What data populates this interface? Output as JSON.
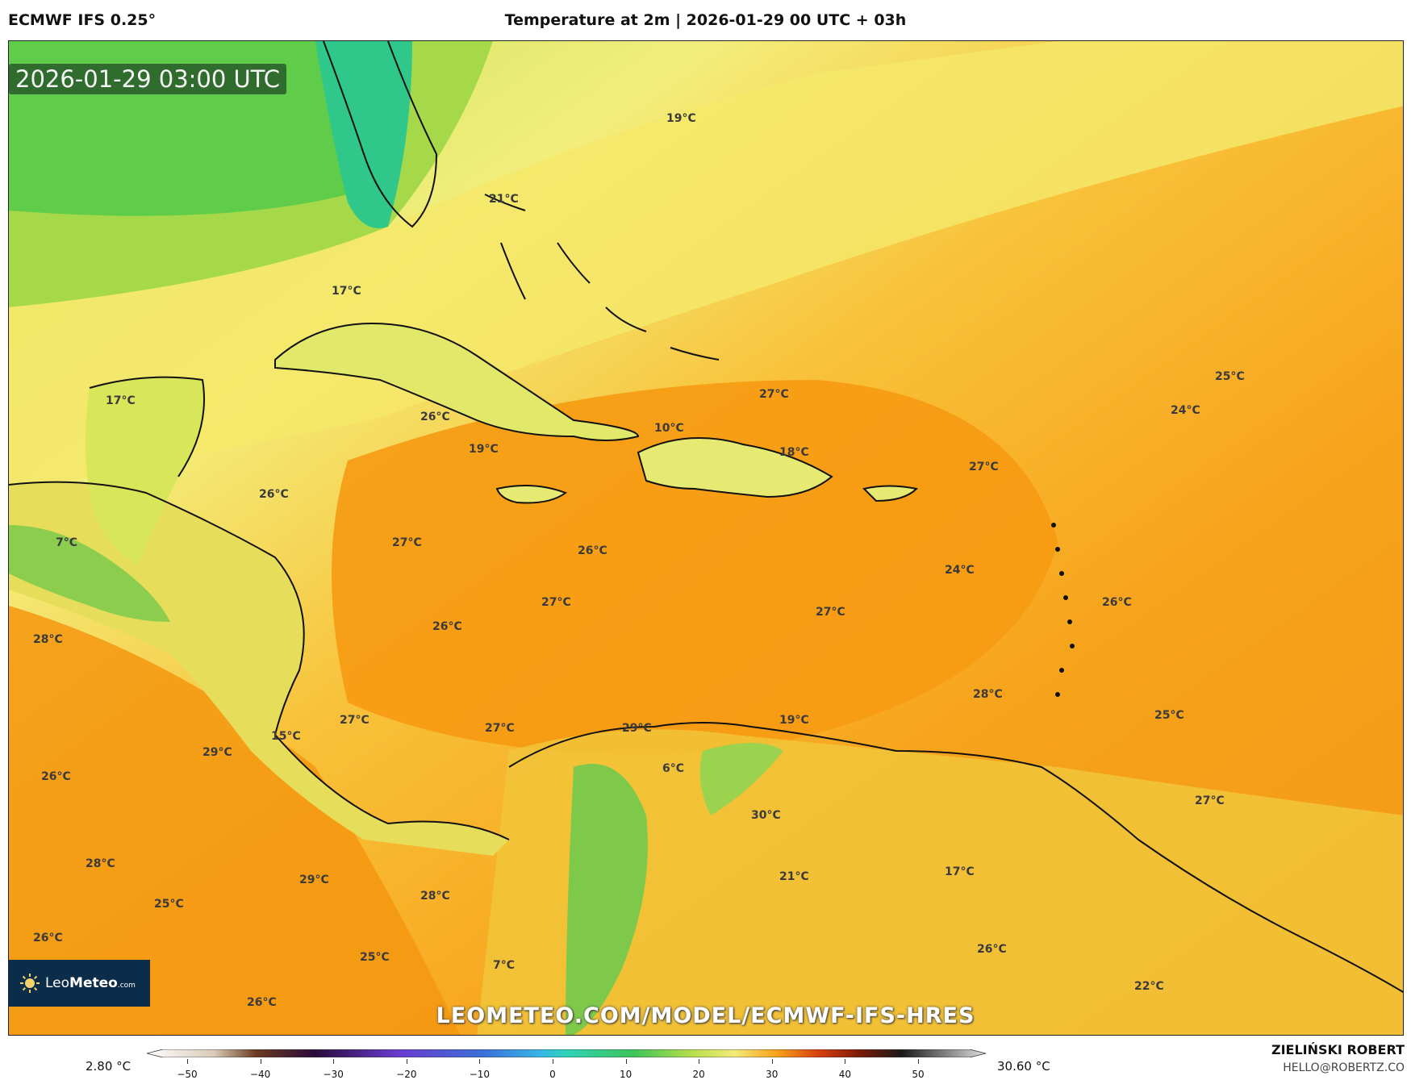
{
  "header": {
    "model": "ECMWF IFS 0.25°",
    "title": "Temperature at 2m | 2026-01-29 00 UTC + 03h"
  },
  "map": {
    "valid_time": "2026-01-29 03:00 UTC",
    "watermark_url": "LEOMETEO.COM/MODEL/ECMWF-IFS-HRES",
    "temperature_labels": [
      "19°C",
      "21°C",
      "17°C",
      "17°C",
      "26°C",
      "19°C",
      "10°C",
      "27°C",
      "18°C",
      "27°C",
      "26°C",
      "7°C",
      "27°C",
      "26°C",
      "24°C",
      "27°C",
      "27°C",
      "26°C",
      "26°C",
      "28°C",
      "25°C",
      "24°C",
      "28°C",
      "27°C",
      "15°C",
      "27°C",
      "29°C",
      "19°C",
      "25°C",
      "29°C",
      "6°C",
      "26°C",
      "30°C",
      "27°C",
      "28°C",
      "21°C",
      "17°C",
      "29°C",
      "28°C",
      "25°C",
      "26°C",
      "25°C",
      "7°C",
      "26°C",
      "22°C",
      "26°C"
    ]
  },
  "logo": {
    "brand_light": "Leo",
    "brand_bold": "Meteo",
    "brand_suffix": ".com"
  },
  "legend": {
    "min_value": "2.80 °C",
    "max_value": "30.60 °C",
    "ticks": [
      "−50",
      "−40",
      "−30",
      "−20",
      "−10",
      "0",
      "10",
      "20",
      "30",
      "40",
      "50"
    ]
  },
  "footer": {
    "author": "ZIELIŃSKI ROBERT",
    "email": "HELLO@ROBERTZ.CO"
  },
  "colors": {
    "cold_green": "#3cc45a",
    "mild_yellow": "#f2ec78",
    "warm_orange": "#f7a21b",
    "hot_orange": "#f28a0f"
  }
}
